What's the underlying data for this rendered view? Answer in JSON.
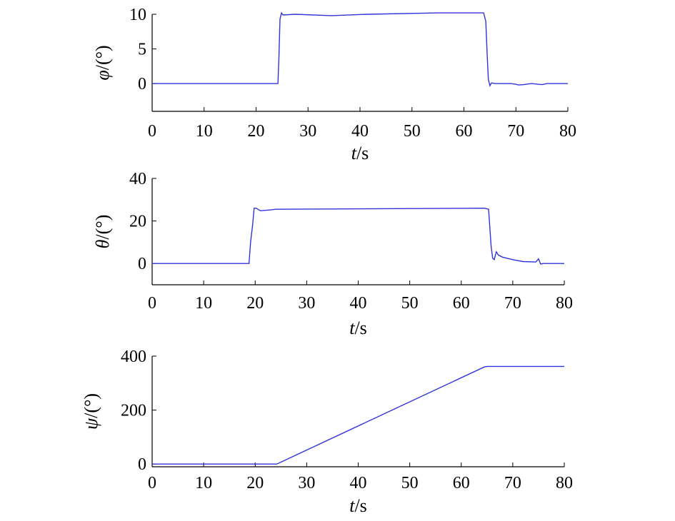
{
  "chart_data": [
    {
      "type": "line",
      "xlabel": {
        "var": "t",
        "unit": "/s"
      },
      "ylabel": {
        "var": "φ",
        "unit": "/(°)"
      },
      "xlim": [
        0,
        80
      ],
      "ylim": [
        -4,
        10
      ],
      "xticks": [
        0,
        10,
        20,
        30,
        40,
        50,
        60,
        70,
        80
      ],
      "yticks": [
        0,
        5,
        10
      ],
      "series": [
        {
          "color": "#3333dd",
          "x": [
            0,
            24.2,
            24.4,
            24.6,
            24.9,
            25.2,
            27.5,
            34.5,
            41.5,
            55,
            63.8,
            64.2,
            64.5,
            64.7,
            65.0,
            65.3,
            66,
            69,
            70,
            70.5,
            71.5,
            72,
            73,
            75,
            76,
            80
          ],
          "y": [
            0,
            0,
            3.8,
            9.3,
            10.2,
            9.9,
            10.0,
            9.8,
            10.0,
            10.2,
            10.2,
            9.0,
            3.8,
            0.6,
            -0.3,
            0.1,
            0,
            0,
            -0.1,
            -0.2,
            -0.15,
            -0.1,
            0,
            -0.15,
            0,
            0
          ]
        }
      ]
    },
    {
      "type": "line",
      "xlabel": {
        "var": "t",
        "unit": "/s"
      },
      "ylabel": {
        "var": "θ",
        "unit": "/(°)"
      },
      "xlim": [
        0,
        80
      ],
      "ylim": [
        -10,
        40
      ],
      "xticks": [
        0,
        10,
        20,
        30,
        40,
        50,
        60,
        70,
        80
      ],
      "yticks": [
        0,
        20,
        40
      ],
      "series": [
        {
          "color": "#3333dd",
          "x": [
            0,
            18.8,
            19.1,
            19.5,
            19.8,
            20.2,
            21,
            23,
            24,
            64.5,
            65.3,
            65.8,
            66.1,
            66.4,
            66.8,
            67.2,
            68,
            70,
            72,
            74.5,
            75,
            75.4,
            76,
            80
          ],
          "y": [
            0,
            0,
            10,
            18,
            26,
            26,
            24.8,
            25.2,
            25.5,
            26,
            25.5,
            8,
            2.5,
            1.8,
            5.5,
            4,
            3,
            1.8,
            0.9,
            0.7,
            2.2,
            -0.2,
            0,
            0
          ]
        }
      ]
    },
    {
      "type": "line",
      "xlabel": {
        "var": "t",
        "unit": "/s"
      },
      "ylabel": {
        "var": "ψ",
        "unit": "/(°)"
      },
      "xlim": [
        0,
        80
      ],
      "ylim": [
        -10,
        400
      ],
      "xticks": [
        0,
        10,
        20,
        30,
        40,
        50,
        60,
        70,
        80
      ],
      "yticks": [
        0,
        200,
        400
      ],
      "series": [
        {
          "color": "#3333dd",
          "x": [
            0,
            24.2,
            64.5,
            65.0,
            80
          ],
          "y": [
            0,
            0,
            360,
            362,
            362
          ]
        }
      ]
    }
  ]
}
